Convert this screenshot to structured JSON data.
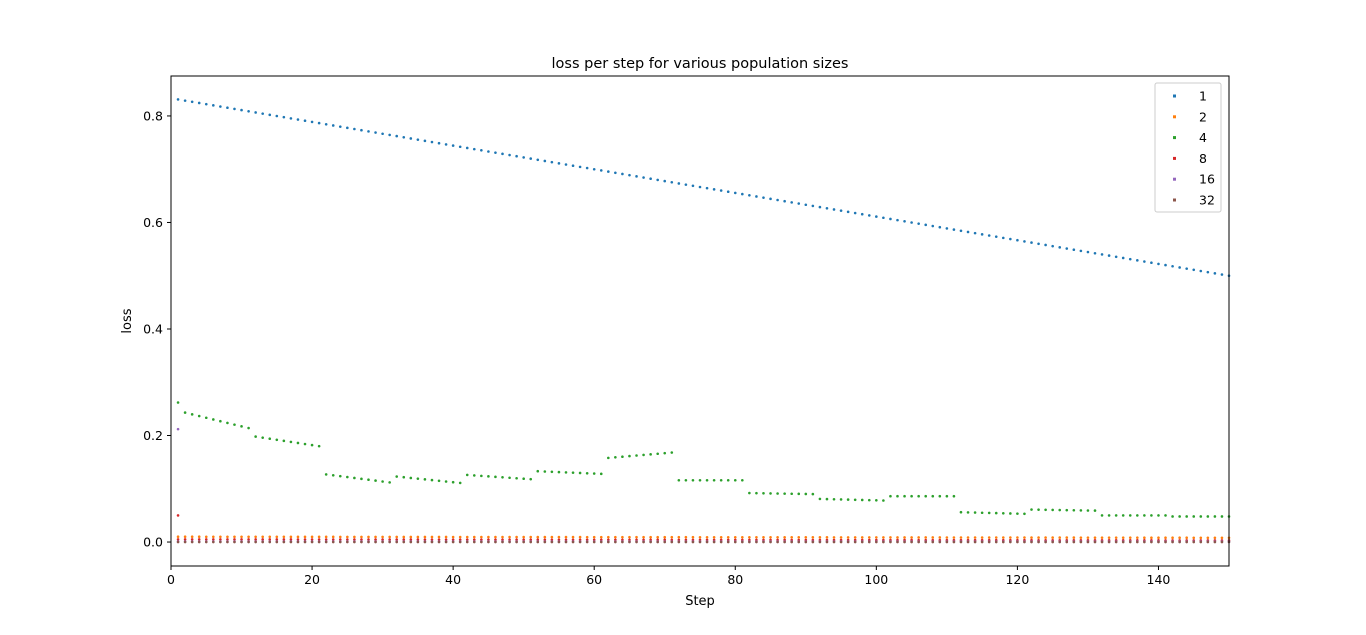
{
  "chart_data": {
    "type": "scatter",
    "title": "loss per step for various population sizes",
    "xlabel": "Step",
    "ylabel": "loss",
    "xlim": [
      0,
      150
    ],
    "ylim": [
      -0.045,
      0.875
    ],
    "xticks": [
      0,
      20,
      40,
      60,
      80,
      100,
      120,
      140
    ],
    "yticks": [
      0.0,
      0.2,
      0.4,
      0.6,
      0.8
    ],
    "grid": false,
    "legend": "top-right",
    "series": [
      {
        "name": "1",
        "color": "#1f77b4",
        "generator": "linear",
        "start": 0.831,
        "end": 0.5,
        "x_start": 1,
        "x_end": 150
      },
      {
        "name": "2",
        "color": "#ff7f0e",
        "generator": "band",
        "start": 0.01,
        "end": 0.008,
        "x_start": 1,
        "x_end": 150
      },
      {
        "name": "4",
        "color": "#2ca02c",
        "generator": "segments",
        "x_start": 1,
        "x_end": 150,
        "segments": [
          {
            "x0": 1,
            "x1": 1,
            "y0": 0.262,
            "y1": 0.262
          },
          {
            "x0": 2,
            "x1": 11,
            "y0": 0.243,
            "y1": 0.214
          },
          {
            "x0": 12,
            "x1": 21,
            "y0": 0.198,
            "y1": 0.18
          },
          {
            "x0": 22,
            "x1": 31,
            "y0": 0.127,
            "y1": 0.112
          },
          {
            "x0": 32,
            "x1": 41,
            "y0": 0.123,
            "y1": 0.111
          },
          {
            "x0": 42,
            "x1": 51,
            "y0": 0.126,
            "y1": 0.118
          },
          {
            "x0": 52,
            "x1": 61,
            "y0": 0.133,
            "y1": 0.128
          },
          {
            "x0": 62,
            "x1": 71,
            "y0": 0.158,
            "y1": 0.168
          },
          {
            "x0": 72,
            "x1": 81,
            "y0": 0.116,
            "y1": 0.116
          },
          {
            "x0": 82,
            "x1": 91,
            "y0": 0.092,
            "y1": 0.09
          },
          {
            "x0": 92,
            "x1": 101,
            "y0": 0.081,
            "y1": 0.078
          },
          {
            "x0": 102,
            "x1": 111,
            "y0": 0.086,
            "y1": 0.086
          },
          {
            "x0": 112,
            "x1": 121,
            "y0": 0.056,
            "y1": 0.053
          },
          {
            "x0": 122,
            "x1": 131,
            "y0": 0.061,
            "y1": 0.059
          },
          {
            "x0": 132,
            "x1": 141,
            "y0": 0.05,
            "y1": 0.05
          },
          {
            "x0": 142,
            "x1": 150,
            "y0": 0.048,
            "y1": 0.048
          }
        ]
      },
      {
        "name": "8",
        "color": "#d62728",
        "generator": "band",
        "start": 0.005,
        "end": 0.003,
        "x_start": 1,
        "x_end": 150,
        "extra_points": [
          [
            1,
            0.05
          ]
        ]
      },
      {
        "name": "16",
        "color": "#9467bd",
        "generator": "band",
        "start": 0.001,
        "end": 0.001,
        "x_start": 1,
        "x_end": 150,
        "extra_points": [
          [
            1,
            0.212
          ]
        ]
      },
      {
        "name": "32",
        "color": "#8c564b",
        "generator": "band",
        "start": 0.0,
        "end": 0.0,
        "x_start": 1,
        "x_end": 150
      }
    ]
  }
}
